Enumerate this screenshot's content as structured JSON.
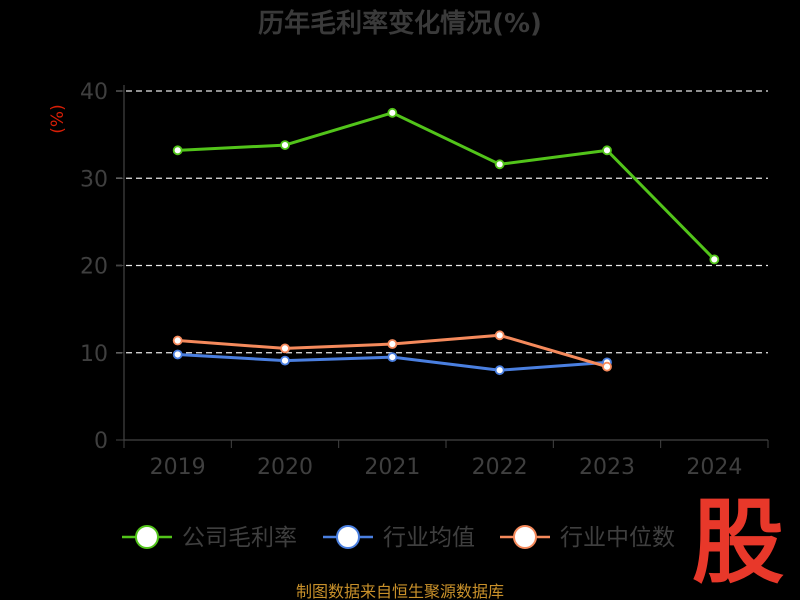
{
  "chart_data": {
    "type": "line",
    "title": "历年毛利率变化情况(%)",
    "ylabel": "(%)",
    "categories": [
      "2019",
      "2020",
      "2021",
      "2022",
      "2023",
      "2024"
    ],
    "ylim": [
      0,
      40
    ],
    "yticks": [
      0,
      10,
      20,
      30,
      40
    ],
    "grid": true,
    "legend_position": "bottom",
    "series": [
      {
        "name": "公司毛利率",
        "color": "#52c41a",
        "values": [
          33.2,
          33.8,
          37.5,
          31.6,
          33.2,
          20.7
        ]
      },
      {
        "name": "行业均值",
        "color": "#4a7fe0",
        "values": [
          9.8,
          9.1,
          9.5,
          8.0,
          8.9,
          null
        ]
      },
      {
        "name": "行业中位数",
        "color": "#f58a5c",
        "values": [
          11.4,
          10.5,
          11.0,
          12.0,
          8.4,
          null
        ]
      }
    ]
  },
  "source_text": "制图数据来自恒生聚源数据库",
  "watermark": "股"
}
